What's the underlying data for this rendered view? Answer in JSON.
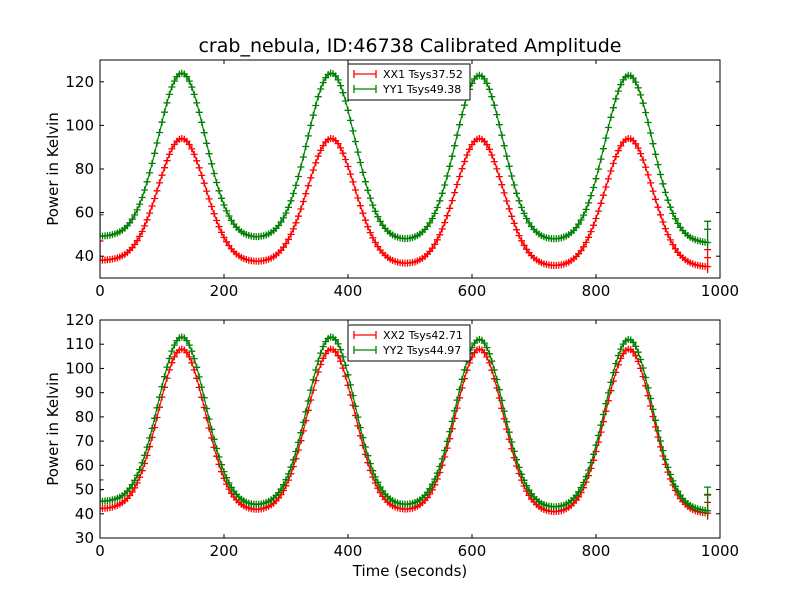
{
  "figure": {
    "title": "crab_nebula, ID:46738 Calibrated Amplitude",
    "xlabel": "Time (seconds)"
  },
  "chart_data": [
    {
      "type": "line",
      "ylabel": "Power in Kelvin",
      "xlabel": "",
      "xlim": [
        0,
        1000
      ],
      "ylim": [
        30,
        130
      ],
      "xticks": [
        0,
        200,
        400,
        600,
        800,
        1000
      ],
      "yticks": [
        40,
        60,
        80,
        100,
        120
      ],
      "grid": false,
      "legend_position": "top-center",
      "marker": "+",
      "peaks_x": [
        132,
        373,
        612,
        853
      ],
      "x_range": [
        0,
        980
      ],
      "series": [
        {
          "name": "XX1 Tsys37.52",
          "color": "#ff0000",
          "baseline": [
            38,
            37,
            36,
            35,
            35
          ],
          "peak_values": [
            94,
            94,
            94,
            94
          ],
          "start_spike": 47,
          "end_spike": 43
        },
        {
          "name": "YY1 Tsys49.38",
          "color": "#008000",
          "baseline": [
            49,
            48,
            47,
            47,
            46
          ],
          "peak_values": [
            124,
            124,
            123,
            123
          ],
          "start_spike": 59,
          "end_spike": 56
        }
      ]
    },
    {
      "type": "line",
      "ylabel": "Power in Kelvin",
      "xlabel": "Time (seconds)",
      "xlim": [
        0,
        1000
      ],
      "ylim": [
        30,
        120
      ],
      "xticks": [
        0,
        200,
        400,
        600,
        800,
        1000
      ],
      "yticks": [
        30,
        40,
        50,
        60,
        70,
        80,
        90,
        100,
        110,
        120
      ],
      "grid": false,
      "legend_position": "top-center",
      "marker": "+",
      "peaks_x": [
        132,
        373,
        612,
        853
      ],
      "x_range": [
        0,
        980
      ],
      "series": [
        {
          "name": "XX2 Tsys42.71",
          "color": "#ff0000",
          "baseline": [
            42,
            41,
            41,
            40,
            40
          ],
          "peak_values": [
            108,
            108,
            108,
            108
          ],
          "start_spike": 50,
          "end_spike": 48
        },
        {
          "name": "YY2 Tsys44.97",
          "color": "#008000",
          "baseline": [
            45,
            43,
            43,
            42,
            41
          ],
          "peak_values": [
            113,
            113,
            112,
            112
          ],
          "start_spike": 54,
          "end_spike": 51
        }
      ]
    }
  ]
}
